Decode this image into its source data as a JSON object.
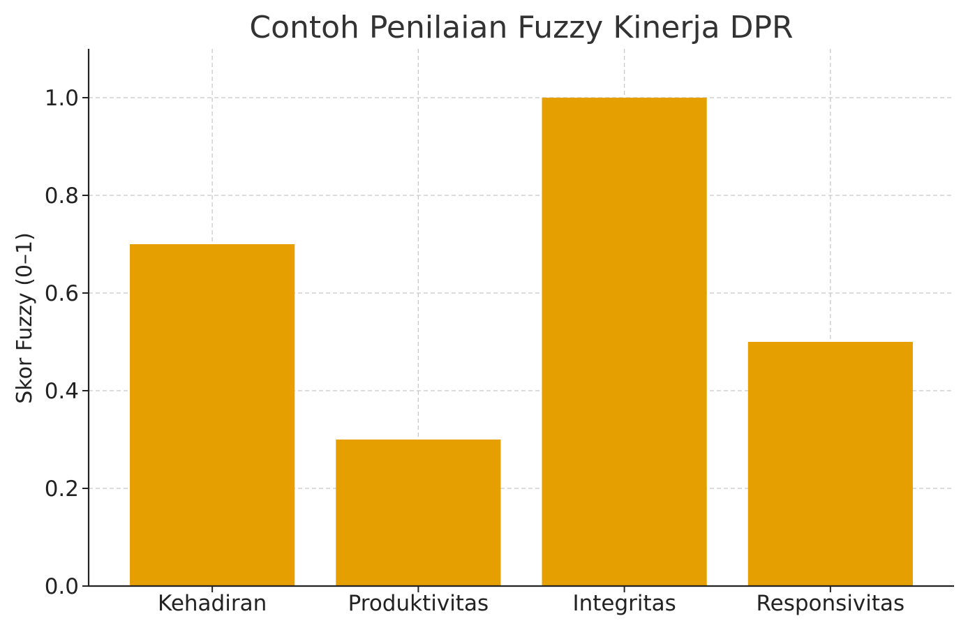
{
  "chart_data": {
    "type": "bar",
    "title": "Contoh Penilaian Fuzzy Kinerja DPR",
    "xlabel": "",
    "ylabel": "Skor Fuzzy (0–1)",
    "categories": [
      "Kehadiran",
      "Produktivitas",
      "Integritas",
      "Responsivitas"
    ],
    "values": [
      0.7,
      0.3,
      1.0,
      0.5
    ],
    "ylim": [
      0,
      1.1
    ],
    "yticks": [
      0.0,
      0.2,
      0.4,
      0.6,
      0.8,
      1.0
    ],
    "ytick_labels": [
      "0.0",
      "0.2",
      "0.4",
      "0.6",
      "0.8",
      "1.0"
    ],
    "grid": true,
    "bar_color": "#E5A000"
  }
}
